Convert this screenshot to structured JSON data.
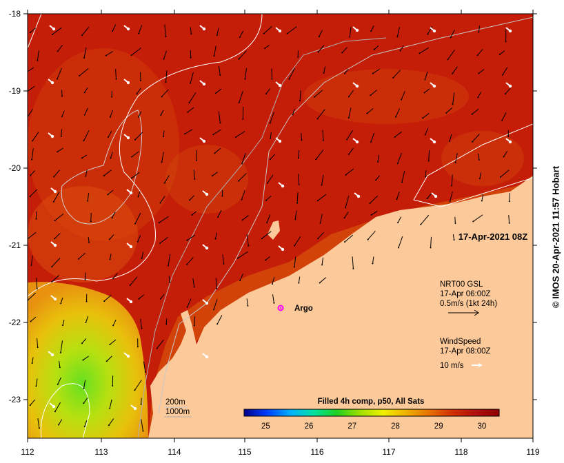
{
  "map": {
    "lon_ticks": [
      "112",
      "113",
      "114",
      "115",
      "116",
      "117",
      "118",
      "119"
    ],
    "lat_ticks": [
      "-18",
      "-19",
      "-20",
      "-21",
      "-22",
      "-23"
    ],
    "date_stamp": "17-Apr-2021 08Z",
    "colors": {
      "land": "#fbc99a",
      "warm_sst": "#c01e08",
      "mid_sst": "#e0500a",
      "cool_sst": "#e8b80e",
      "coolest_sst": "#7ee01a",
      "current_arrow": "#000000",
      "wind_arrow": "#ffffff",
      "argo": "#ff00ff"
    }
  },
  "argo": {
    "label": "Argo"
  },
  "legend": {
    "current_lines": [
      "NRT00 GSL",
      "17-Apr 06:00Z",
      "0.5m/s (1kt 24h)"
    ],
    "wind_lines": [
      "WindSpeed",
      "17-Apr 08:00Z"
    ],
    "wind_scale": "10 m/s",
    "depth_200": "200m",
    "depth_1000": "1000m"
  },
  "colorbar": {
    "title": "Filled 4h comp, p50, All Sats",
    "ticks": [
      "25",
      "26",
      "27",
      "28",
      "29",
      "30"
    ],
    "range": [
      24.5,
      30.4
    ],
    "stops": [
      "#00008b",
      "#0040ff",
      "#00b0ff",
      "#00e0a0",
      "#20d020",
      "#a0e000",
      "#f0f000",
      "#f0b000",
      "#e87000",
      "#d03000",
      "#b01010",
      "#900000"
    ]
  },
  "copyright": "© IMOS 20-Apr-2021 11:57 Hobart"
}
